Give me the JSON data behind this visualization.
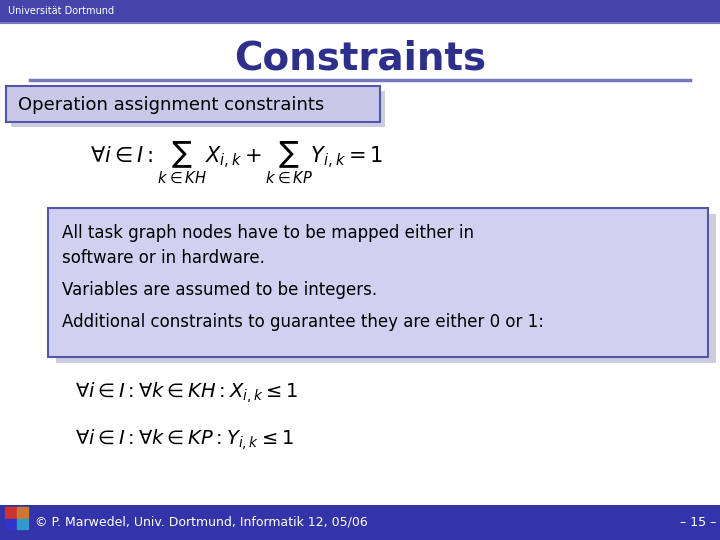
{
  "title": "Constraints",
  "title_color": "#2E2E8B",
  "title_fontsize": 28,
  "header_bg_color": "#4444AA",
  "header_text": "Universität Dortmund",
  "header_text_color": "#FFFFFF",
  "section_label": "Operation assignment constraints",
  "section_box_color": "#C8C8E8",
  "section_box_edge": "#5555AA",
  "info_box_color": "#D0D0F0",
  "info_box_edge": "#5555AA",
  "info_lines": [
    "All task graph nodes have to be mapped either in",
    "software or in hardware.",
    "Variables are assumed to be integers.",
    "Additional constraints to guarantee they are either 0 or 1:"
  ],
  "formula1": "$\\forall i \\in I: \\sum_{k \\in KH} X_{i,k} + \\sum_{k \\in KP} Y_{i,k} = 1$",
  "formula2": "$\\forall i \\in I: \\forall k \\in KH: X_{i,k} \\leq 1$",
  "formula3": "$\\forall i \\in I: \\forall k \\in KP: Y_{i,k} \\leq 1$",
  "footer_text": "© P. Marwedel, Univ. Dortmund, Informatik 12, 05/06",
  "footer_right": "– 15 –",
  "footer_bg": "#3333AA",
  "footer_text_color": "#FFFFFF",
  "bg_color": "#FFFFFF",
  "divider_color": "#7777BB",
  "shadow_color": "#AAAACC"
}
